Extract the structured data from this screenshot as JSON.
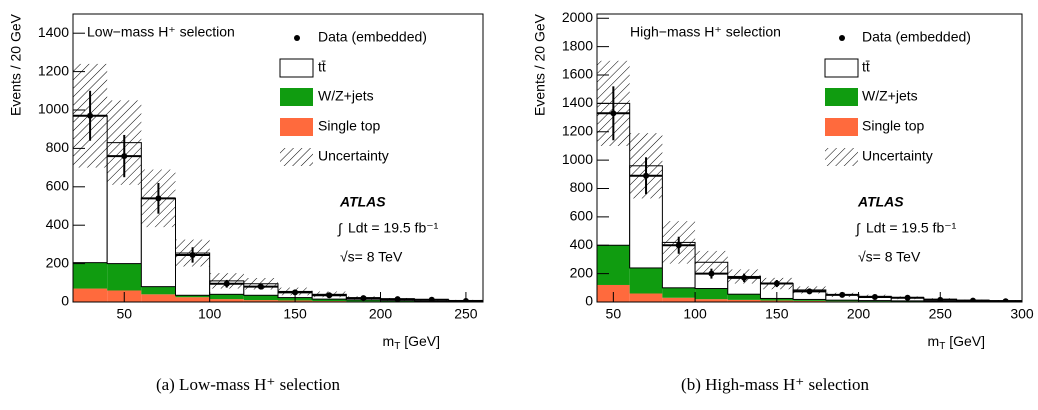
{
  "chart_data": [
    {
      "type": "histogram",
      "annotation": "Low−mass H⁺ selection",
      "y_label": "Events / 20 GeV",
      "x_label": {
        "text": "m",
        "subscript": "T",
        "unit": "[GeV]"
      },
      "experiment": "ATLAS",
      "luminosity": "Ldt = 19.5 fb⁻¹",
      "energy": "√s= 8 TeV",
      "caption": "(a) Low-mass H⁺ selection",
      "bins": [
        20,
        40,
        60,
        80,
        100,
        120,
        140,
        160,
        180,
        200,
        220,
        240,
        260
      ],
      "series": [
        {
          "name": "Single top",
          "color": "#ff6a3d",
          "values": [
            70,
            60,
            40,
            25,
            15,
            10,
            8,
            5,
            3,
            2,
            1,
            1
          ]
        },
        {
          "name": "W/Z+jets",
          "color": "#109c10",
          "values": [
            135,
            140,
            40,
            10,
            25,
            25,
            15,
            10,
            8,
            5,
            3,
            2
          ]
        },
        {
          "name": "tt̄",
          "color": "#ffffff",
          "values": [
            765,
            630,
            460,
            220,
            70,
            60,
            32,
            25,
            11,
            8,
            6,
            5
          ]
        }
      ],
      "uncertainty": {
        "name": "Uncertainty",
        "values": [
          270,
          220,
          150,
          70,
          40,
          30,
          20,
          15,
          8,
          6,
          4,
          3
        ]
      },
      "data": {
        "name": "Data (embedded)",
        "values": [
          970,
          760,
          540,
          245,
          95,
          80,
          50,
          35,
          20,
          15,
          12,
          5
        ],
        "errors": [
          130,
          110,
          80,
          40,
          20,
          15,
          12,
          10,
          6,
          5,
          4,
          3
        ]
      },
      "xlim": [
        20,
        260
      ],
      "xticks": [
        50,
        100,
        150,
        200,
        250
      ],
      "ylim": [
        0,
        1500
      ],
      "yticks": [
        0,
        200,
        400,
        600,
        800,
        1000,
        1200,
        1400
      ]
    },
    {
      "type": "histogram",
      "annotation": "High−mass H⁺ selection",
      "y_label": "Events / 20 GeV",
      "x_label": {
        "text": "m",
        "subscript": "T",
        "unit": "[GeV]"
      },
      "experiment": "ATLAS",
      "luminosity": "Ldt = 19.5 fb⁻¹",
      "energy": "√s= 8 TeV",
      "caption": "(b) High-mass H⁺ selection",
      "bins": [
        40,
        60,
        80,
        100,
        120,
        140,
        160,
        180,
        200,
        220,
        240,
        260,
        280,
        300
      ],
      "series": [
        {
          "name": "Single top",
          "color": "#ff6a3d",
          "values": [
            120,
            60,
            30,
            20,
            15,
            10,
            8,
            5,
            4,
            3,
            2,
            1,
            1
          ]
        },
        {
          "name": "W/Z+jets",
          "color": "#109c10",
          "values": [
            280,
            180,
            70,
            75,
            40,
            15,
            10,
            8,
            6,
            5,
            3,
            2,
            2
          ]
        },
        {
          "name": "tt̄",
          "color": "#ffffff",
          "values": [
            1000,
            720,
            320,
            185,
            125,
            105,
            67,
            37,
            30,
            22,
            15,
            9,
            7
          ]
        }
      ],
      "uncertainty": {
        "name": "Uncertainty",
        "values": [
          300,
          230,
          150,
          80,
          50,
          40,
          25,
          15,
          12,
          10,
          7,
          5,
          4
        ]
      },
      "data": {
        "name": "Data (embedded)",
        "values": [
          1330,
          890,
          400,
          200,
          170,
          130,
          75,
          50,
          35,
          30,
          15,
          10,
          5
        ],
        "errors": [
          190,
          130,
          60,
          35,
          30,
          25,
          15,
          12,
          10,
          8,
          6,
          5,
          3
        ]
      },
      "xlim": [
        40,
        300
      ],
      "xticks": [
        50,
        100,
        150,
        200,
        250,
        300
      ],
      "ylim": [
        0,
        2030
      ],
      "yticks": [
        0,
        200,
        400,
        600,
        800,
        1000,
        1200,
        1400,
        1600,
        1800,
        2000
      ]
    }
  ]
}
